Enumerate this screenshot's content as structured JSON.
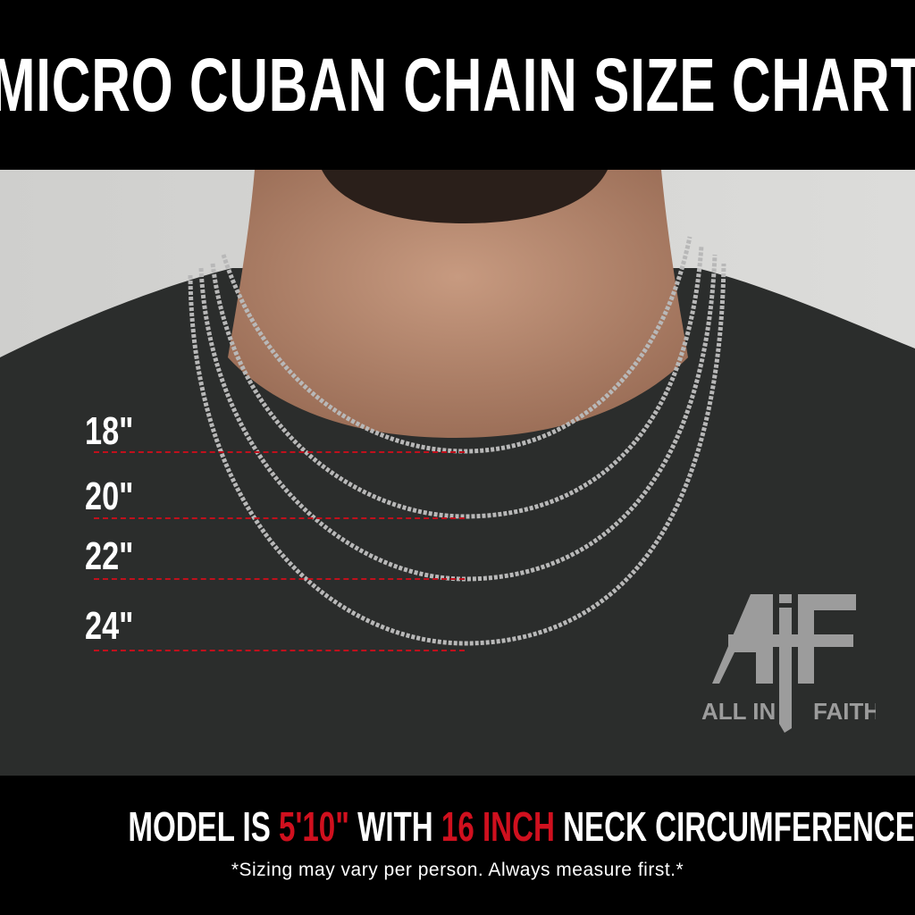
{
  "header": {
    "title": "MICRO CUBAN CHAIN SIZE CHART"
  },
  "sizes": [
    {
      "label": "18\""
    },
    {
      "label": "20\""
    },
    {
      "label": "22\""
    },
    {
      "label": "24\""
    }
  ],
  "logo": {
    "mark": "AiF",
    "left_text": "ALL IN",
    "right_text": "FAITH"
  },
  "footer": {
    "prefix": "MODEL IS ",
    "height": "5'10\"",
    "middle": " WITH ",
    "neck": "16 INCH",
    "suffix": " NECK CIRCUMFERENCE",
    "note": "*Sizing may vary per person. Always measure first.*"
  },
  "colors": {
    "accent": "#d0101e",
    "background": "#000000",
    "text": "#ffffff"
  }
}
